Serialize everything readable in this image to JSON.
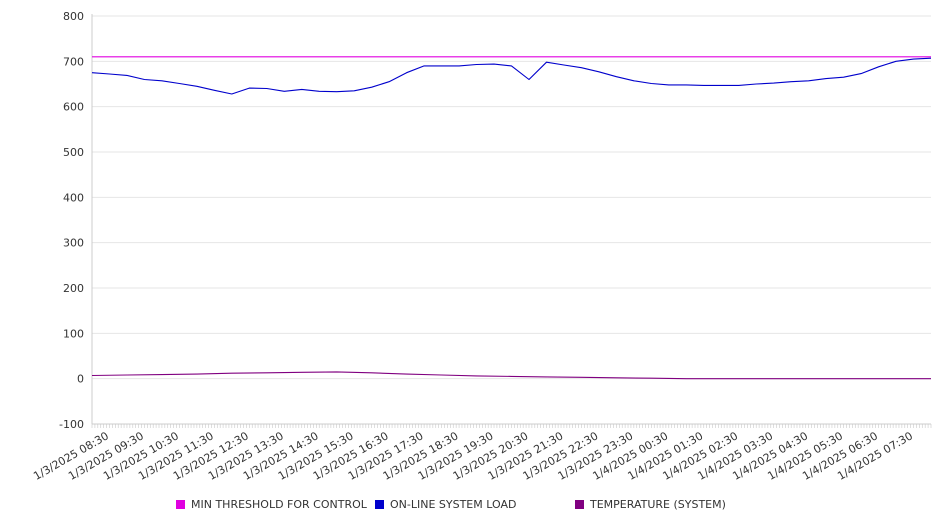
{
  "chart_data": {
    "type": "line",
    "title": "",
    "xlabel": "",
    "ylabel": "",
    "ylim": [
      -100,
      800
    ],
    "yticks": [
      -100,
      0,
      100,
      200,
      300,
      400,
      500,
      600,
      700,
      800
    ],
    "x_tick_labels": [
      "1/3/2025 08:30",
      "1/3/2025 09:30",
      "1/3/2025 10:30",
      "1/3/2025 11:30",
      "1/3/2025 12:30",
      "1/3/2025 13:30",
      "1/3/2025 14:30",
      "1/3/2025 15:30",
      "1/3/2025 16:30",
      "1/3/2025 17:30",
      "1/3/2025 18:30",
      "1/3/2025 19:30",
      "1/3/2025 20:30",
      "1/3/2025 21:30",
      "1/3/2025 22:30",
      "1/3/2025 23:30",
      "1/4/2025 00:30",
      "1/4/2025 01:30",
      "1/4/2025 02:30",
      "1/4/2025 03:30",
      "1/4/2025 04:30",
      "1/4/2025 05:30",
      "1/4/2025 06:30",
      "1/4/2025 07:30"
    ],
    "x_start": "1/3/2025 08:00",
    "x_end": "1/4/2025 08:00",
    "grid": true,
    "legend_position": "bottom",
    "series": [
      {
        "name": "MIN THRESHOLD FOR CONTROL",
        "color": "#e000e0",
        "x": [
          "1/3/2025 08:00",
          "1/4/2025 08:00"
        ],
        "values": [
          710,
          710
        ]
      },
      {
        "name": "ON-LINE SYSTEM LOAD",
        "color": "#0000cc",
        "x": [
          "1/3/2025 08:00",
          "1/3/2025 08:30",
          "1/3/2025 09:00",
          "1/3/2025 09:30",
          "1/3/2025 10:00",
          "1/3/2025 10:30",
          "1/3/2025 11:00",
          "1/3/2025 11:30",
          "1/3/2025 12:00",
          "1/3/2025 12:30",
          "1/3/2025 13:00",
          "1/3/2025 13:30",
          "1/3/2025 14:00",
          "1/3/2025 14:30",
          "1/3/2025 15:00",
          "1/3/2025 15:30",
          "1/3/2025 16:00",
          "1/3/2025 16:30",
          "1/3/2025 17:00",
          "1/3/2025 17:30",
          "1/3/2025 18:00",
          "1/3/2025 18:30",
          "1/3/2025 19:00",
          "1/3/2025 19:30",
          "1/3/2025 20:00",
          "1/3/2025 20:30",
          "1/3/2025 21:00",
          "1/3/2025 21:30",
          "1/3/2025 22:00",
          "1/3/2025 22:30",
          "1/3/2025 23:00",
          "1/3/2025 23:30",
          "1/4/2025 00:00",
          "1/4/2025 00:30",
          "1/4/2025 01:00",
          "1/4/2025 01:30",
          "1/4/2025 02:00",
          "1/4/2025 02:30",
          "1/4/2025 03:00",
          "1/4/2025 03:30",
          "1/4/2025 04:00",
          "1/4/2025 04:30",
          "1/4/2025 05:00",
          "1/4/2025 05:30",
          "1/4/2025 06:00",
          "1/4/2025 06:30",
          "1/4/2025 07:00",
          "1/4/2025 07:30",
          "1/4/2025 08:00"
        ],
        "values": [
          675,
          672,
          669,
          660,
          657,
          651,
          645,
          636,
          628,
          641,
          640,
          634,
          638,
          634,
          633,
          635,
          643,
          655,
          675,
          690,
          690,
          690,
          693,
          694,
          690,
          660,
          698,
          692,
          686,
          677,
          666,
          657,
          651,
          648,
          648,
          647,
          647,
          647,
          650,
          652,
          655,
          657,
          662,
          665,
          673,
          688,
          700,
          705,
          707
        ]
      },
      {
        "name": "TEMPERATURE (SYSTEM)",
        "color": "#800080",
        "x": [
          "1/3/2025 08:00",
          "1/3/2025 09:00",
          "1/3/2025 10:00",
          "1/3/2025 11:00",
          "1/3/2025 12:00",
          "1/3/2025 13:00",
          "1/3/2025 14:00",
          "1/3/2025 15:00",
          "1/3/2025 16:00",
          "1/3/2025 17:00",
          "1/3/2025 18:00",
          "1/3/2025 19:00",
          "1/3/2025 20:00",
          "1/3/2025 21:00",
          "1/3/2025 22:00",
          "1/3/2025 23:00",
          "1/4/2025 00:00",
          "1/4/2025 01:00",
          "1/4/2025 02:00",
          "1/4/2025 03:00",
          "1/4/2025 04:00",
          "1/4/2025 05:00",
          "1/4/2025 06:00",
          "1/4/2025 07:00",
          "1/4/2025 08:00"
        ],
        "values": [
          7,
          8,
          9,
          10,
          12,
          13,
          14,
          15,
          13,
          10,
          8,
          6,
          5,
          4,
          3,
          2,
          1,
          0,
          0,
          0,
          0,
          0,
          0,
          0,
          0
        ]
      }
    ]
  }
}
